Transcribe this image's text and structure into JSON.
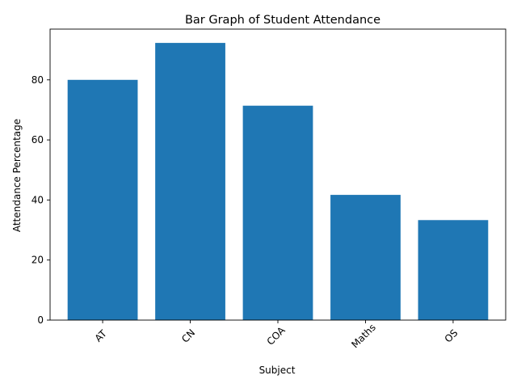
{
  "chart_data": {
    "type": "bar",
    "title": "Bar Graph of Student Attendance",
    "xlabel": "Subject",
    "ylabel": "Attendance Percentage",
    "categories": [
      "AT",
      "CN",
      "COA",
      "Maths",
      "OS"
    ],
    "values": [
      80,
      92.3,
      71.4,
      41.7,
      33.3
    ],
    "ylim": [
      0,
      96.9
    ],
    "yticks": [
      0,
      20,
      40,
      60,
      80
    ],
    "grid": false,
    "legend": "none",
    "bar_color": "#1f77b4"
  }
}
